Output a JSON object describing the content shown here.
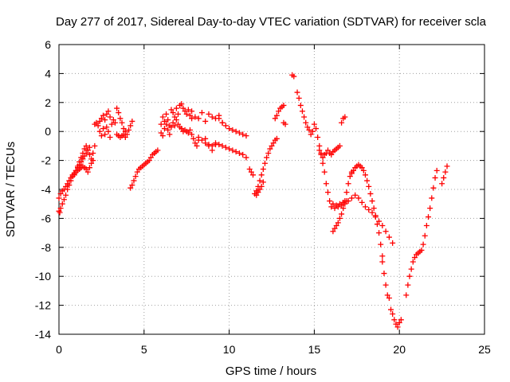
{
  "chart_data": {
    "type": "scatter",
    "title": "Day 277 of 2017, Sidereal Day-to-day VTEC variation (SDTVAR) for receiver scla",
    "xlabel": "GPS time / hours",
    "ylabel": "SDTVAR / TECUs",
    "xlim": [
      0,
      25
    ],
    "ylim": [
      -14,
      6
    ],
    "xticks": [
      0,
      5,
      10,
      15,
      20,
      25
    ],
    "yticks": [
      -14,
      -12,
      -10,
      -8,
      -6,
      -4,
      -2,
      0,
      2,
      4,
      6
    ],
    "grid": true,
    "marker": "plus",
    "color": "#ff0000",
    "series": [
      {
        "x": [
          0.0,
          0.05,
          0.1,
          0.2,
          0.3,
          0.4,
          0.5,
          0.6,
          0.7,
          0.8,
          0.9,
          1.0,
          1.1,
          1.2,
          1.3,
          1.4,
          1.5,
          1.6,
          1.7,
          1.8
        ],
        "y": [
          -5.5,
          -5.6,
          -5.3,
          -5.0,
          -4.7,
          -4.4,
          -4.0,
          -3.7,
          -3.4,
          -3.1,
          -2.9,
          -2.7,
          -2.5,
          -2.3,
          -2.1,
          -1.9,
          -1.7,
          -1.5,
          -1.3,
          -1.1
        ]
      },
      {
        "x": [
          0.0,
          0.1,
          0.2,
          0.3,
          0.4,
          0.5,
          0.6,
          0.7,
          0.8,
          0.9,
          1.0,
          1.1,
          1.2,
          1.3,
          1.4,
          1.5,
          1.6,
          1.7,
          1.8,
          1.9,
          2.0
        ],
        "y": [
          -4.6,
          -4.3,
          -4.1,
          -4.0,
          -3.8,
          -3.6,
          -3.4,
          -3.2,
          -3.0,
          -2.9,
          -2.8,
          -2.7,
          -2.6,
          -2.5,
          -2.4,
          -2.5,
          -2.6,
          -2.8,
          -2.5,
          -2.2,
          -2.0
        ]
      },
      {
        "x": [
          0.9,
          1.0,
          1.1,
          1.2,
          1.3,
          1.4,
          1.5,
          1.6,
          1.7,
          1.8,
          1.9,
          2.0,
          2.1
        ],
        "y": [
          -3.0,
          -2.7,
          -2.4,
          -2.1,
          -1.8,
          -1.5,
          -1.2,
          -1.0,
          -1.3,
          -1.6,
          -1.9,
          -1.5,
          -1.0
        ]
      },
      {
        "x": [
          2.1,
          2.2,
          2.3,
          2.4,
          2.5,
          2.6,
          2.7,
          2.8,
          2.9,
          3.0,
          3.1,
          3.2,
          3.3
        ],
        "y": [
          0.5,
          0.6,
          0.4,
          0.7,
          0.9,
          1.1,
          0.8,
          1.2,
          1.4,
          1.0,
          0.5,
          0.8,
          0.6
        ]
      },
      {
        "x": [
          2.4,
          2.5,
          2.6,
          2.7,
          2.8,
          2.9,
          3.0
        ],
        "y": [
          0.0,
          -0.3,
          0.2,
          -0.2,
          0.3,
          0.0,
          -0.4
        ]
      },
      {
        "x": [
          3.4,
          3.5,
          3.6,
          3.7,
          3.8,
          3.9,
          4.0,
          4.1,
          4.2,
          4.3
        ],
        "y": [
          1.6,
          1.3,
          0.9,
          0.6,
          0.2,
          0.0,
          -0.2,
          0.1,
          0.4,
          0.7
        ]
      },
      {
        "x": [
          3.4,
          3.5,
          3.6,
          3.7,
          3.8,
          3.9
        ],
        "y": [
          -0.2,
          -0.3,
          -0.4,
          -0.3,
          -0.2,
          -0.4
        ]
      },
      {
        "x": [
          4.2,
          4.3,
          4.4,
          4.5,
          4.6,
          4.7,
          4.8,
          4.9,
          5.0,
          5.1,
          5.2,
          5.3,
          5.4,
          5.5,
          5.6,
          5.7,
          5.8
        ],
        "y": [
          -3.9,
          -3.7,
          -3.4,
          -3.1,
          -2.8,
          -2.6,
          -2.5,
          -2.4,
          -2.3,
          -2.2,
          -2.1,
          -2.0,
          -1.8,
          -1.6,
          -1.5,
          -1.4,
          -1.3
        ]
      },
      {
        "x": [
          6.0,
          6.1,
          6.2,
          6.3,
          6.4,
          6.5,
          6.6,
          6.7,
          6.8,
          6.9,
          7.0,
          7.1,
          7.2,
          7.3,
          7.4,
          7.5,
          7.6,
          7.7,
          7.8
        ],
        "y": [
          0.5,
          1.0,
          0.7,
          1.2,
          0.8,
          0.4,
          1.5,
          1.3,
          1.0,
          1.6,
          1.2,
          1.8,
          1.9,
          1.6,
          1.4,
          1.2,
          1.5,
          1.1,
          0.9
        ]
      },
      {
        "x": [
          6.0,
          6.1,
          6.2,
          6.3,
          6.4,
          6.5,
          6.6,
          6.7,
          6.8,
          6.9,
          7.0,
          7.1,
          7.2,
          7.3,
          7.4,
          7.5,
          7.6,
          7.7,
          7.8
        ],
        "y": [
          -0.1,
          -0.3,
          0.2,
          0.5,
          0.1,
          -0.2,
          0.3,
          0.6,
          0.4,
          0.8,
          0.5,
          0.3,
          0.2,
          0.0,
          0.1,
          0.0,
          -0.1,
          0.1,
          -0.2
        ]
      },
      {
        "x": [
          7.8,
          8.0,
          8.2,
          8.4,
          8.6,
          8.8,
          9.0,
          9.2,
          9.4,
          9.6
        ],
        "y": [
          1.4,
          1.0,
          0.9,
          1.3,
          0.7,
          1.2,
          1.0,
          0.9,
          1.1,
          0.6
        ]
      },
      {
        "x": [
          7.9,
          8.0,
          8.1,
          8.2
        ],
        "y": [
          -0.5,
          -0.8,
          -1.0,
          -0.6
        ]
      },
      {
        "x": [
          8.2,
          8.4,
          8.6,
          8.8,
          9.0,
          9.2,
          9.4,
          9.6,
          9.8,
          10.0,
          10.2,
          10.4,
          10.6,
          10.8,
          11.0
        ],
        "y": [
          -0.4,
          -0.6,
          -0.8,
          -0.9,
          -1.0,
          -0.8,
          -0.9,
          -1.0,
          -1.1,
          -1.2,
          -1.3,
          -1.4,
          -1.5,
          -1.6,
          -1.8
        ]
      },
      {
        "x": [
          8.6,
          8.8,
          9.0,
          9.2
        ],
        "y": [
          -0.5,
          -1.0,
          -1.3,
          -0.9
        ]
      },
      {
        "x": [
          9.4,
          9.6,
          9.8,
          10.0,
          10.2,
          10.4,
          10.6,
          10.8,
          11.0
        ],
        "y": [
          0.9,
          0.6,
          0.4,
          0.2,
          0.1,
          0.0,
          -0.1,
          -0.2,
          -0.3
        ]
      },
      {
        "x": [
          11.2,
          11.3,
          11.4
        ],
        "y": [
          -2.6,
          -2.8,
          -3.0
        ]
      },
      {
        "x": [
          11.5,
          11.6,
          11.7,
          11.8,
          11.9,
          12.0,
          12.1,
          12.2,
          12.3,
          12.4,
          12.5,
          12.6,
          12.7,
          12.8
        ],
        "y": [
          -4.3,
          -4.1,
          -3.8,
          -3.4,
          -3.0,
          -2.6,
          -2.2,
          -1.8,
          -1.5,
          -1.2,
          -1.0,
          -0.8,
          -0.6,
          -0.5
        ]
      },
      {
        "x": [
          11.6,
          11.7,
          11.8,
          11.9,
          12.0
        ],
        "y": [
          -4.4,
          -4.2,
          -4.0,
          -3.8,
          -3.5
        ]
      },
      {
        "x": [
          12.7,
          12.8,
          12.9,
          13.0,
          13.1,
          13.2
        ],
        "y": [
          0.9,
          1.1,
          1.4,
          1.6,
          1.7,
          1.8
        ]
      },
      {
        "x": [
          13.2,
          13.3
        ],
        "y": [
          0.6,
          0.5
        ]
      },
      {
        "x": [
          13.7,
          13.8
        ],
        "y": [
          3.9,
          3.8
        ]
      },
      {
        "x": [
          14.0,
          14.1,
          14.2,
          14.3,
          14.4,
          14.5,
          14.6,
          14.7,
          14.8,
          14.9
        ],
        "y": [
          2.7,
          2.3,
          1.8,
          1.4,
          1.0,
          0.6,
          0.3,
          0.1,
          -0.2,
          0.0
        ]
      },
      {
        "x": [
          15.0,
          15.1,
          15.2,
          15.3,
          15.4,
          15.5,
          15.6,
          15.7,
          15.8,
          15.9,
          16.0,
          16.1,
          16.2,
          16.3,
          16.4,
          16.5,
          16.6,
          16.7,
          16.8,
          16.9
        ],
        "y": [
          0.5,
          0.2,
          -0.4,
          -1.0,
          -1.6,
          -2.2,
          -2.8,
          -3.6,
          -4.2,
          -4.8,
          -5.2,
          -5.0,
          -5.3,
          -5.1,
          -5.2,
          -5.0,
          -5.1,
          -4.9,
          -5.0,
          -4.8
        ]
      },
      {
        "x": [
          15.3,
          15.4,
          15.5,
          15.6,
          15.7,
          15.8,
          15.9,
          16.0,
          16.1,
          16.2,
          16.3,
          16.4,
          16.5
        ],
        "y": [
          -1.3,
          -1.5,
          -1.8,
          -1.6,
          -1.5,
          -1.3,
          -1.5,
          -1.6,
          -1.4,
          -1.3,
          -1.2,
          -1.1,
          -1.0
        ]
      },
      {
        "x": [
          16.1,
          16.2,
          16.3,
          16.4,
          16.5,
          16.6,
          16.7,
          16.8,
          16.9,
          17.0,
          17.1,
          17.2
        ],
        "y": [
          -6.9,
          -6.7,
          -6.5,
          -6.3,
          -6.0,
          -5.7,
          -5.3,
          -4.8,
          -4.2,
          -3.6,
          -3.1,
          -2.8
        ]
      },
      {
        "x": [
          16.6,
          16.7,
          16.8
        ],
        "y": [
          0.6,
          0.9,
          1.0
        ]
      },
      {
        "x": [
          17.2,
          17.3,
          17.4,
          17.5,
          17.6,
          17.7,
          17.8,
          17.9,
          18.0,
          18.1,
          18.2,
          18.3,
          18.4,
          18.5,
          18.6,
          18.7,
          18.8,
          18.9,
          19.0
        ],
        "y": [
          -2.9,
          -2.7,
          -2.5,
          -2.4,
          -2.3,
          -2.4,
          -2.5,
          -2.7,
          -3.0,
          -3.4,
          -3.8,
          -4.3,
          -4.8,
          -5.3,
          -5.8,
          -6.4,
          -7.0,
          -7.8,
          -8.6
        ]
      },
      {
        "x": [
          17.0,
          17.2,
          17.4,
          17.6,
          17.8,
          18.0,
          18.2,
          18.4,
          18.6,
          18.8,
          19.0,
          19.2,
          19.4,
          19.6
        ],
        "y": [
          -4.8,
          -4.6,
          -4.4,
          -4.6,
          -4.9,
          -5.2,
          -5.4,
          -5.6,
          -5.9,
          -6.2,
          -6.5,
          -6.9,
          -7.3,
          -7.7
        ]
      },
      {
        "x": [
          19.0,
          19.1,
          19.2,
          19.3,
          19.4,
          19.5
        ],
        "y": [
          -9.0,
          -9.8,
          -10.6,
          -11.3,
          -11.5,
          -12.3
        ]
      },
      {
        "x": [
          19.6,
          19.7,
          19.8,
          19.9,
          20.0,
          20.1
        ],
        "y": [
          -12.6,
          -13.0,
          -13.3,
          -13.5,
          -13.2,
          -13.0
        ]
      },
      {
        "x": [
          20.4,
          20.5,
          20.6,
          20.7,
          20.8,
          20.9,
          21.0,
          21.1,
          21.2,
          21.3,
          21.4,
          21.5,
          21.6,
          21.7,
          21.8,
          21.9,
          22.0,
          22.1,
          22.2
        ],
        "y": [
          -11.3,
          -10.6,
          -10.0,
          -9.5,
          -9.0,
          -8.7,
          -8.5,
          -8.4,
          -8.3,
          -8.2,
          -7.8,
          -7.2,
          -6.5,
          -5.9,
          -5.3,
          -4.6,
          -3.9,
          -3.2,
          -2.7
        ]
      },
      {
        "x": [
          22.5,
          22.6,
          22.7,
          22.8
        ],
        "y": [
          -3.6,
          -3.2,
          -2.8,
          -2.4
        ]
      }
    ]
  }
}
